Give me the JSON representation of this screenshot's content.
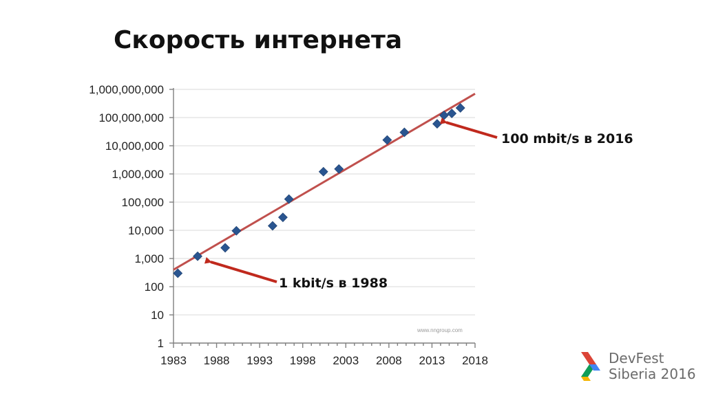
{
  "slide": {
    "title": "Скорость интернета"
  },
  "annotations": [
    {
      "text": "100 mbit/s в 2016",
      "color": "#c0291d"
    },
    {
      "text": "1 kbit/s в 1988",
      "color": "#c0291d"
    }
  ],
  "credit": "www.nngroup.com",
  "logo": {
    "line1": "DevFest",
    "line2": "Siberia 2016",
    "colors": [
      "#db4437",
      "#4285f4",
      "#0f9d58",
      "#f4b400"
    ]
  },
  "chart_data": {
    "type": "scatter",
    "xlim": [
      1983,
      2018
    ],
    "ylim": [
      1,
      1000000000
    ],
    "yscale": "log",
    "x_ticks": [
      1983,
      1988,
      1993,
      1998,
      2003,
      2008,
      2013,
      2018
    ],
    "x_tick_labels": [
      "1983",
      "1988",
      "1993",
      "1998",
      "2003",
      "2008",
      "2013",
      "2018"
    ],
    "y_ticks": [
      1,
      10,
      100,
      1000,
      10000,
      100000,
      1000000,
      10000000,
      100000000,
      1000000000
    ],
    "y_tick_labels": [
      "1",
      "10",
      "100",
      "1,000",
      "10,000",
      "100,000",
      "1,000,000",
      "10,000,000",
      "100,000,000",
      "1,000,000,000"
    ],
    "grid": true,
    "series": [
      {
        "marker": "diamond",
        "color": "#2a5590",
        "points": [
          {
            "x": 1983.5,
            "y": 300
          },
          {
            "x": 1985.8,
            "y": 1200
          },
          {
            "x": 1989,
            "y": 2400
          },
          {
            "x": 1990.3,
            "y": 9600
          },
          {
            "x": 1994.5,
            "y": 14400
          },
          {
            "x": 1995.7,
            "y": 28800
          },
          {
            "x": 1996.4,
            "y": 128000
          },
          {
            "x": 2000.4,
            "y": 1200000
          },
          {
            "x": 2002.2,
            "y": 1500000
          },
          {
            "x": 2007.8,
            "y": 16000000
          },
          {
            "x": 2009.8,
            "y": 30000000
          },
          {
            "x": 2013.6,
            "y": 60000000
          },
          {
            "x": 2014.4,
            "y": 120000000
          },
          {
            "x": 2015.3,
            "y": 140000000
          },
          {
            "x": 2016.3,
            "y": 220000000
          }
        ]
      }
    ],
    "trendline": {
      "color": "#c0504d",
      "start": {
        "x": 1983,
        "y": 400
      },
      "end": {
        "x": 2018,
        "y": 700000000
      }
    }
  }
}
